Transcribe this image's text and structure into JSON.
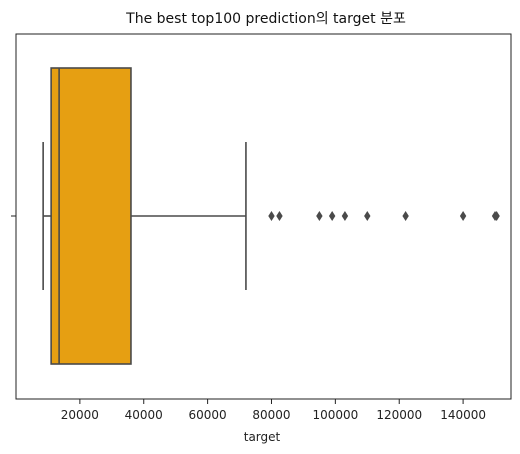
{
  "chart_data": {
    "type": "box",
    "title": "The best top100 prediction의 target 분포",
    "xlabel": "target",
    "ylabel": "",
    "xlim": [
      0,
      155000
    ],
    "xticks": [
      20000,
      40000,
      60000,
      80000,
      100000,
      120000,
      140000
    ],
    "box": {
      "whisker_low": 8500,
      "q1": 11000,
      "median": 13500,
      "q3": 36000,
      "whisker_high": 72000
    },
    "outliers": [
      80000,
      82500,
      95000,
      99000,
      103000,
      110000,
      122000,
      140000,
      150000,
      150500
    ],
    "colors": {
      "box_fill": "#e69f12",
      "box_edge": "#4a4a4a",
      "outlier": "#4a4a4a"
    },
    "grid": false,
    "legend": "none"
  }
}
